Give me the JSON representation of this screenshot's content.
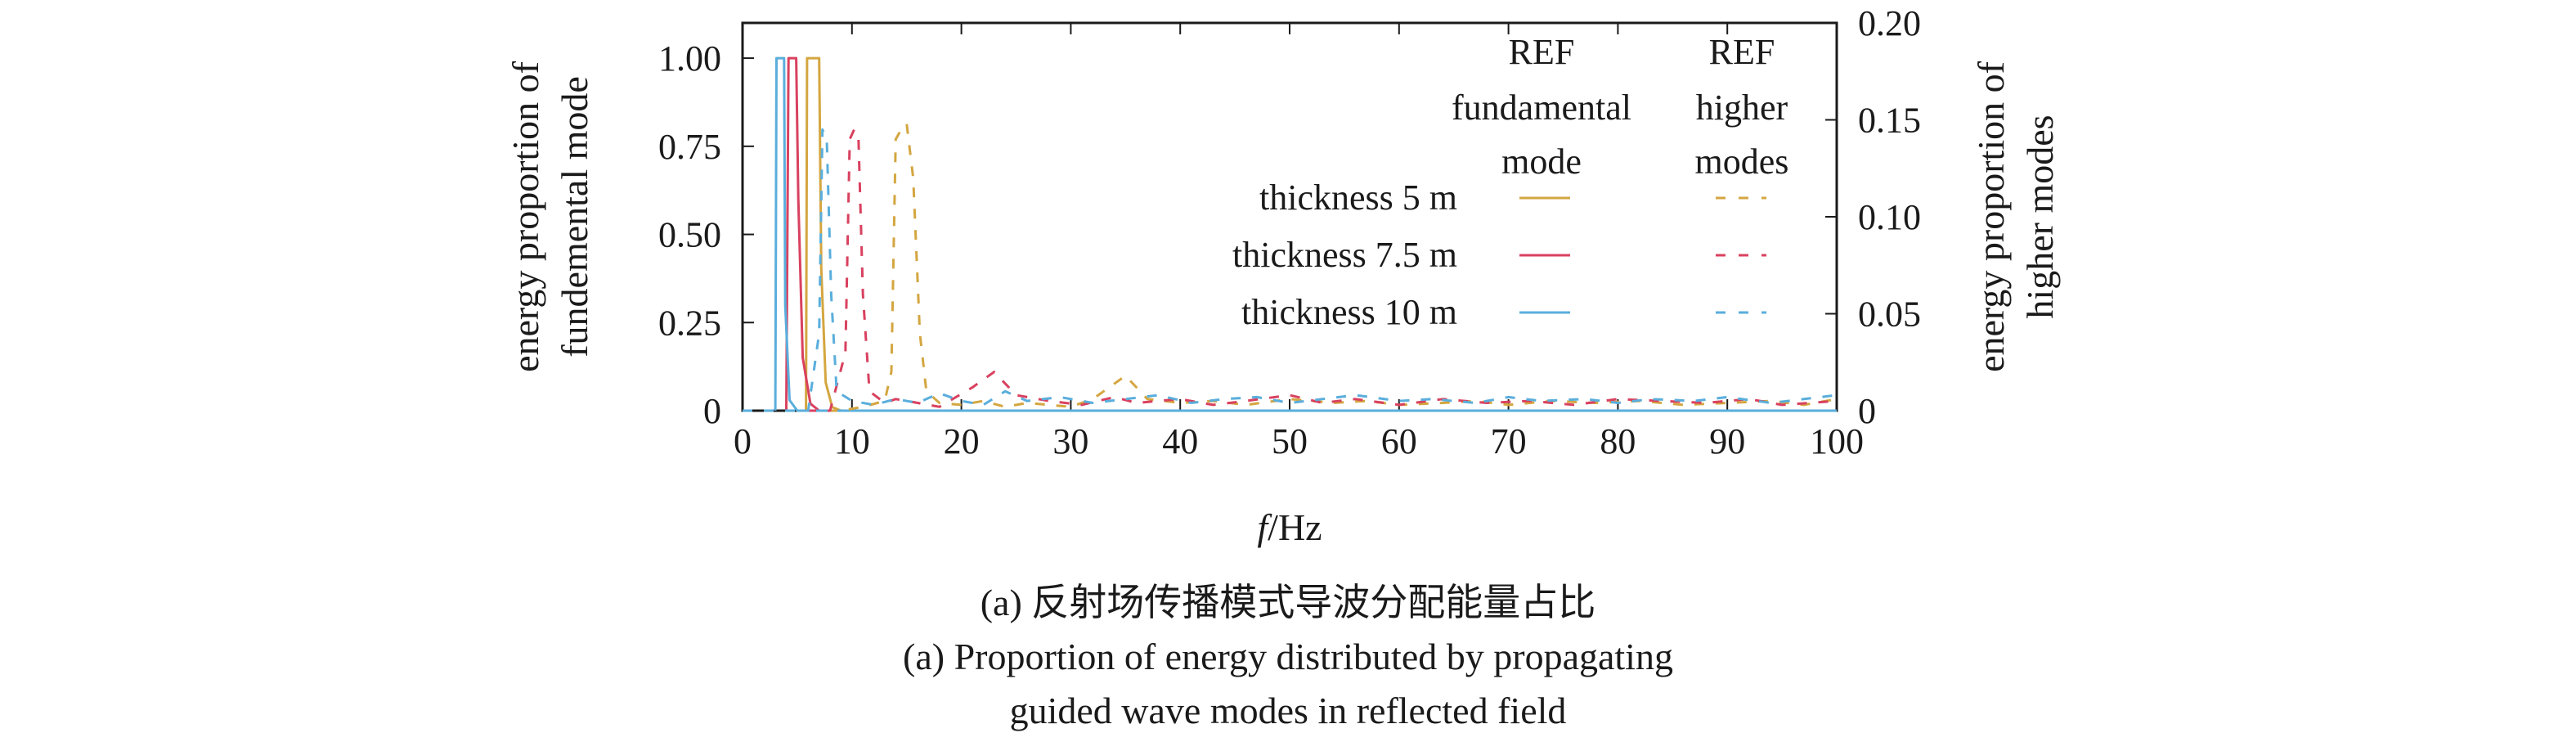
{
  "chart_data": {
    "type": "line",
    "xlabel_italic": "f",
    "xlabel_unit": "/Hz",
    "ylabel_left": [
      "energy proportion of",
      "fundemental mode"
    ],
    "ylabel_right": [
      "energy proportion of",
      "higher modes"
    ],
    "xlim": [
      0,
      100
    ],
    "ylim_left": [
      0,
      1.1
    ],
    "ylim_right": [
      0,
      0.2
    ],
    "x_ticks": [
      "0",
      "10",
      "20",
      "30",
      "40",
      "50",
      "60",
      "70",
      "80",
      "90",
      "100"
    ],
    "y_left_ticks": [
      "0",
      "0.25",
      "0.50",
      "0.75",
      "1.00"
    ],
    "y_right_ticks": [
      "0",
      "0.05",
      "0.10",
      "0.15",
      "0.20"
    ],
    "legend": {
      "header_fundamental": [
        "REF",
        "fundamental",
        "mode"
      ],
      "header_higher": [
        "REF",
        "higher",
        "modes"
      ],
      "rows": [
        "thickness 5 m",
        "thickness 7.5 m",
        "thickness 10 m"
      ]
    },
    "colors": {
      "thickness_5": "#d4a640",
      "thickness_7_5": "#d9415f",
      "thickness_10": "#5aaedc"
    },
    "series": [
      {
        "name": "thickness 5 m",
        "mode": "fundamental",
        "axis": "left",
        "color": "#d4a640",
        "style": "solid",
        "points": [
          [
            5.8,
            0
          ],
          [
            5.9,
            1.0
          ],
          [
            7.0,
            1.0
          ],
          [
            7.2,
            0.4
          ],
          [
            7.6,
            0.08
          ],
          [
            8.2,
            0.01
          ],
          [
            9,
            0
          ],
          [
            100,
            0
          ]
        ]
      },
      {
        "name": "thickness 7.5 m",
        "mode": "fundamental",
        "axis": "left",
        "color": "#d9415f",
        "style": "solid",
        "points": [
          [
            4.0,
            0
          ],
          [
            4.2,
            1.0
          ],
          [
            4.9,
            1.0
          ],
          [
            5.1,
            0.6
          ],
          [
            5.5,
            0.15
          ],
          [
            6.2,
            0.02
          ],
          [
            7,
            0
          ],
          [
            100,
            0
          ]
        ]
      },
      {
        "name": "thickness 10 m",
        "mode": "fundamental",
        "axis": "left",
        "color": "#5aaedc",
        "style": "solid",
        "points": [
          [
            3.0,
            0
          ],
          [
            3.1,
            1.0
          ],
          [
            3.8,
            1.0
          ],
          [
            3.9,
            0.3
          ],
          [
            4.3,
            0.03
          ],
          [
            5,
            0
          ],
          [
            100,
            0
          ]
        ]
      },
      {
        "name": "thickness 5 m",
        "mode": "higher",
        "axis": "right",
        "color": "#d4a640",
        "style": "dashed",
        "points": [
          [
            0,
            0
          ],
          [
            9,
            0
          ],
          [
            11,
            0.002
          ],
          [
            13,
            0.005
          ],
          [
            13.6,
            0.02
          ],
          [
            14,
            0.14
          ],
          [
            14.5,
            0.145
          ],
          [
            15,
            0.148
          ],
          [
            15.6,
            0.12
          ],
          [
            16.2,
            0.04
          ],
          [
            16.8,
            0.01
          ],
          [
            18,
            0.004
          ],
          [
            20,
            0.003
          ],
          [
            22,
            0.005
          ],
          [
            24,
            0.002
          ],
          [
            26,
            0.004
          ],
          [
            28,
            0.003
          ],
          [
            30,
            0.002
          ],
          [
            32,
            0.006
          ],
          [
            35,
            0.018
          ],
          [
            37,
            0.006
          ],
          [
            40,
            0.004
          ],
          [
            43,
            0.005
          ],
          [
            46,
            0.003
          ],
          [
            50,
            0.006
          ],
          [
            54,
            0.004
          ],
          [
            57,
            0.005
          ],
          [
            60,
            0.003
          ],
          [
            64,
            0.004
          ],
          [
            67,
            0.005
          ],
          [
            70,
            0.003
          ],
          [
            74,
            0.005
          ],
          [
            78,
            0.004
          ],
          [
            82,
            0.005
          ],
          [
            86,
            0.003
          ],
          [
            90,
            0.004
          ],
          [
            94,
            0.005
          ],
          [
            97,
            0.003
          ],
          [
            100,
            0.006
          ]
        ]
      },
      {
        "name": "thickness 7.5 m",
        "mode": "higher",
        "axis": "right",
        "color": "#d9415f",
        "style": "dashed",
        "points": [
          [
            0,
            0
          ],
          [
            8,
            0
          ],
          [
            9.4,
            0.03
          ],
          [
            9.8,
            0.14
          ],
          [
            10.2,
            0.145
          ],
          [
            10.6,
            0.14
          ],
          [
            11,
            0.06
          ],
          [
            11.6,
            0.01
          ],
          [
            13,
            0.004
          ],
          [
            14,
            0.006
          ],
          [
            16,
            0.004
          ],
          [
            18,
            0.002
          ],
          [
            21,
            0.012
          ],
          [
            23,
            0.02
          ],
          [
            25,
            0.008
          ],
          [
            28,
            0.005
          ],
          [
            31,
            0.003
          ],
          [
            34,
            0.007
          ],
          [
            36,
            0.004
          ],
          [
            40,
            0.006
          ],
          [
            43,
            0.003
          ],
          [
            46,
            0.005
          ],
          [
            50,
            0.008
          ],
          [
            53,
            0.004
          ],
          [
            56,
            0.006
          ],
          [
            60,
            0.003
          ],
          [
            64,
            0.006
          ],
          [
            68,
            0.004
          ],
          [
            72,
            0.005
          ],
          [
            76,
            0.003
          ],
          [
            80,
            0.006
          ],
          [
            84,
            0.005
          ],
          [
            88,
            0.004
          ],
          [
            92,
            0.006
          ],
          [
            95,
            0.003
          ],
          [
            100,
            0.005
          ]
        ]
      },
      {
        "name": "thickness 10 m",
        "mode": "higher",
        "axis": "right",
        "color": "#5aaedc",
        "style": "dashed",
        "points": [
          [
            0,
            0
          ],
          [
            6,
            0
          ],
          [
            7.0,
            0.04
          ],
          [
            7.3,
            0.145
          ],
          [
            7.7,
            0.14
          ],
          [
            8.1,
            0.06
          ],
          [
            8.6,
            0.01
          ],
          [
            10,
            0.005
          ],
          [
            12,
            0.003
          ],
          [
            14,
            0.006
          ],
          [
            16,
            0.004
          ],
          [
            18,
            0.009
          ],
          [
            20,
            0.005
          ],
          [
            22,
            0.003
          ],
          [
            24,
            0.01
          ],
          [
            26,
            0.005
          ],
          [
            29,
            0.007
          ],
          [
            32,
            0.004
          ],
          [
            35,
            0.006
          ],
          [
            38,
            0.008
          ],
          [
            41,
            0.004
          ],
          [
            44,
            0.006
          ],
          [
            47,
            0.007
          ],
          [
            50,
            0.004
          ],
          [
            53,
            0.006
          ],
          [
            56,
            0.008
          ],
          [
            60,
            0.005
          ],
          [
            63,
            0.006
          ],
          [
            67,
            0.004
          ],
          [
            70,
            0.007
          ],
          [
            73,
            0.005
          ],
          [
            77,
            0.006
          ],
          [
            80,
            0.004
          ],
          [
            83,
            0.006
          ],
          [
            87,
            0.005
          ],
          [
            90,
            0.007
          ],
          [
            94,
            0.004
          ],
          [
            97,
            0.006
          ],
          [
            100,
            0.008
          ]
        ]
      }
    ]
  },
  "captions": {
    "line1": "(a) 反射场传播模式导波分配能量占比",
    "line2": "(a) Proportion of energy distributed by propagating",
    "line3": "guided wave modes in reflected field"
  }
}
